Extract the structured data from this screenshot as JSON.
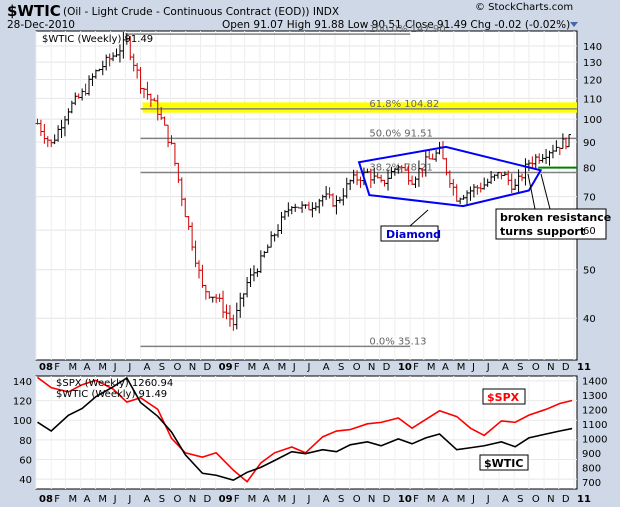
{
  "header": {
    "ticker": "$WTIC",
    "description": "(Oil - Light Crude - Continuous Contract (EOD)) INDX",
    "date": "28-Dec-2010",
    "credit": "© StockCharts.com",
    "ohlc_text": "Open 91.07  High 91.88  Low 90.51  Close 91.49  Chg -0.02 (-0.02%)",
    "dropdown_icon": "triangle-down-icon"
  },
  "colors": {
    "background": "#cfd8e6",
    "panel": "#ffffff",
    "up_bar": "#000000",
    "down_bar": "#cc0000",
    "fib_line": "#808080",
    "support_line": "#008000",
    "highlight": "#ffff00",
    "pattern": "#0000ff",
    "spx_line": "#ff0000",
    "wtic_line": "#000000"
  },
  "chart_data": [
    {
      "type": "bar",
      "subtype": "ohlc",
      "scale": "log",
      "title": "$WTIC (Weekly) 91.49",
      "x": [
        "2008-01-04",
        "2008-02-01",
        "2008-03-07",
        "2008-04-04",
        "2008-05-02",
        "2008-06-06",
        "2008-07-04",
        "2008-08-01",
        "2008-09-05",
        "2008-10-03",
        "2008-10-31",
        "2008-12-05",
        "2009-01-02",
        "2009-02-06",
        "2009-03-06",
        "2009-04-03",
        "2009-05-01",
        "2009-06-05",
        "2009-07-03",
        "2009-08-07",
        "2009-09-04",
        "2009-10-02",
        "2009-11-06",
        "2009-12-04",
        "2010-01-08",
        "2010-02-05",
        "2010-03-05",
        "2010-04-02",
        "2010-05-07",
        "2010-06-04",
        "2010-07-02",
        "2010-08-06",
        "2010-09-03",
        "2010-10-01",
        "2010-11-05",
        "2010-12-03",
        "2010-12-28"
      ],
      "close": [
        98,
        89,
        105,
        112,
        124,
        134,
        143,
        118,
        104,
        88,
        65,
        46,
        44,
        39,
        47,
        52,
        59,
        68,
        66,
        70,
        68,
        75,
        78,
        74,
        81,
        76,
        82,
        86,
        70,
        72,
        74,
        78,
        73,
        82,
        86,
        89,
        91.49
      ],
      "ylim": [
        33,
        150
      ],
      "yticks": [
        40,
        50,
        60,
        70,
        80,
        90,
        100,
        110,
        120,
        130,
        140
      ],
      "xtick_labels": [
        "08",
        "F",
        "M",
        "A",
        "M",
        "J",
        "J",
        "A",
        "S",
        "O",
        "N",
        "D",
        "09",
        "F",
        "M",
        "A",
        "M",
        "J",
        "J",
        "A",
        "S",
        "O",
        "N",
        "D",
        "10",
        "F",
        "M",
        "A",
        "M",
        "J",
        "J",
        "A",
        "S",
        "O",
        "N",
        "D",
        "11"
      ],
      "fibonacci": [
        {
          "label": "100.0% 147.90",
          "value": 147.9
        },
        {
          "label": "61.8% 104.82",
          "value": 104.82
        },
        {
          "label": "50.0% 91.51",
          "value": 91.51
        },
        {
          "label": "38.2% 78.21",
          "value": 78.21
        },
        {
          "label": "0.0% 35.13",
          "value": 35.13
        }
      ],
      "annotations": {
        "diamond_label": "Diamond",
        "callout_line1": "broken resistance",
        "callout_line2": "turns support",
        "support_level": 80,
        "highlight_band": [
          103,
          108
        ]
      },
      "grid": true
    },
    {
      "type": "line",
      "x": [
        "2008-01-04",
        "2008-02-01",
        "2008-03-07",
        "2008-04-04",
        "2008-05-02",
        "2008-06-06",
        "2008-07-04",
        "2008-08-01",
        "2008-09-05",
        "2008-10-03",
        "2008-10-31",
        "2008-12-05",
        "2009-01-02",
        "2009-02-06",
        "2009-03-06",
        "2009-04-03",
        "2009-05-01",
        "2009-06-05",
        "2009-07-03",
        "2009-08-07",
        "2009-09-04",
        "2009-10-02",
        "2009-11-06",
        "2009-12-04",
        "2010-01-08",
        "2010-02-05",
        "2010-03-05",
        "2010-04-02",
        "2010-05-07",
        "2010-06-04",
        "2010-07-02",
        "2010-08-06",
        "2010-09-03",
        "2010-10-01",
        "2010-11-05",
        "2010-12-03",
        "2010-12-28"
      ],
      "series": [
        {
          "name": "$SPX (Weekly) 1260.94",
          "tag": "$SPX",
          "axis": "right",
          "values": [
            1420,
            1350,
            1320,
            1370,
            1400,
            1340,
            1250,
            1280,
            1200,
            1000,
            900,
            870,
            900,
            780,
            700,
            830,
            900,
            940,
            900,
            1010,
            1050,
            1060,
            1100,
            1110,
            1140,
            1070,
            1130,
            1190,
            1150,
            1070,
            1020,
            1120,
            1110,
            1160,
            1200,
            1240,
            1260.94
          ]
        },
        {
          "name": "$WTIC (Weekly) 91.49",
          "tag": "$WTIC",
          "axis": "left",
          "values": [
            98,
            89,
            105,
            112,
            124,
            134,
            143,
            118,
            104,
            88,
            65,
            46,
            44,
            39,
            47,
            52,
            59,
            68,
            66,
            70,
            68,
            75,
            78,
            74,
            81,
            76,
            82,
            86,
            70,
            72,
            74,
            78,
            73,
            82,
            86,
            89,
            91.49
          ]
        }
      ],
      "left_ylim": [
        30,
        145
      ],
      "left_yticks": [
        40,
        60,
        80,
        100,
        120,
        140
      ],
      "right_ylim": [
        650,
        1430
      ],
      "right_yticks": [
        700,
        800,
        900,
        1000,
        1100,
        1200,
        1300,
        1400
      ],
      "xtick_labels": [
        "08",
        "F",
        "M",
        "A",
        "M",
        "J",
        "J",
        "A",
        "S",
        "O",
        "N",
        "D",
        "09",
        "F",
        "M",
        "A",
        "M",
        "J",
        "J",
        "A",
        "S",
        "O",
        "N",
        "D",
        "10",
        "F",
        "M",
        "A",
        "M",
        "J",
        "J",
        "A",
        "S",
        "O",
        "N",
        "D",
        "11"
      ],
      "grid": true
    }
  ]
}
